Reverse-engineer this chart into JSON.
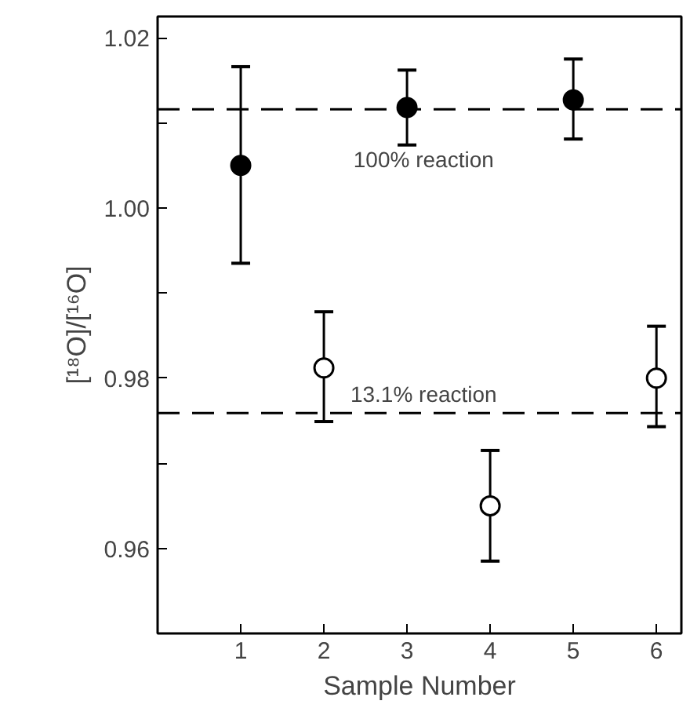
{
  "chart_data": {
    "type": "scatter",
    "xlabel": "Sample Number",
    "ylabel": "[¹⁸O]/[¹⁶O]",
    "xlim": [
      0,
      6.3
    ],
    "ylim": [
      0.95,
      1.0225
    ],
    "xticks": [
      1,
      2,
      3,
      4,
      5,
      6
    ],
    "yticks": [
      {
        "value": 0.96,
        "label": "0.96"
      },
      {
        "value": 0.97,
        "label": null
      },
      {
        "value": 0.98,
        "label": "0.98"
      },
      {
        "value": 0.99,
        "label": null
      },
      {
        "value": 1.0,
        "label": "1.00"
      },
      {
        "value": 1.01,
        "label": null
      },
      {
        "value": 1.02,
        "label": "1.02"
      }
    ],
    "marker": "circle",
    "grid": false,
    "series": [
      {
        "color": "#000000",
        "x": [
          1,
          3,
          5
        ],
        "values": [
          1.005,
          1.0118,
          1.0127
        ],
        "errors": [
          [
            0.9935,
            1.0166
          ],
          [
            1.0074,
            1.0162
          ],
          [
            1.0081,
            1.0175
          ]
        ]
      },
      {
        "color": "#ffffff",
        "x": [
          2,
          4,
          6
        ],
        "values": [
          0.9812,
          0.965,
          0.98
        ],
        "errors": [
          [
            0.9749,
            0.9878
          ],
          [
            0.9585,
            0.9715
          ],
          [
            0.9743,
            0.9861
          ]
        ]
      }
    ],
    "ref_lines": [
      {
        "axis": "y",
        "value": 1.0116,
        "label": "100% reaction",
        "line_style": "dashed",
        "color": "#000000"
      },
      {
        "axis": "y",
        "value": 0.9759,
        "label": "13.1% reaction",
        "line_style": "dashed",
        "color": "#000000"
      }
    ]
  }
}
